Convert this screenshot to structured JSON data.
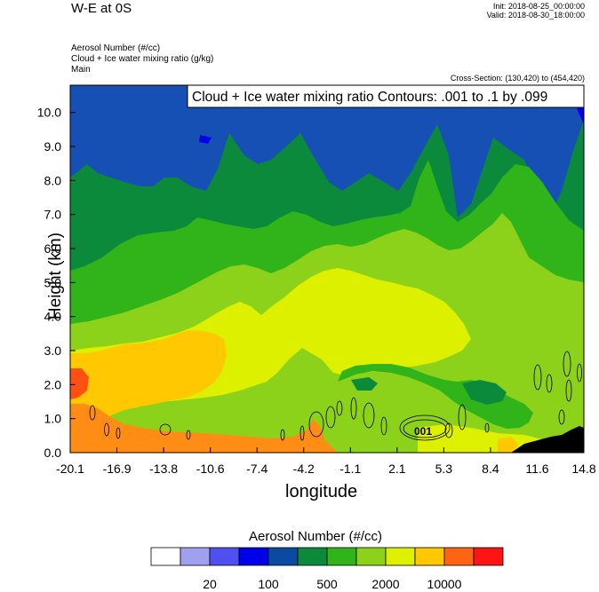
{
  "header": {
    "title": "W-E at 0S",
    "init": "Init: 2018-08-25_00:00:00",
    "valid": "Valid: 2018-08-30_18:00:00",
    "fields": [
      "Aerosol Number   (#/cc)",
      "Cloud + Ice water mixing ratio   (g/kg)",
      "Main"
    ],
    "cross_section": "Cross-Section: (130,420) to (454,420)"
  },
  "chart_data": {
    "type": "heatmap",
    "contour_label": "Cloud + Ice water mixing ratio Contours: .001 to .1 by .099",
    "contour_value_label": "001",
    "xlabel": "longitude",
    "ylabel": "Height (km)",
    "xlim": [
      -20.1,
      14.8
    ],
    "ylim": [
      0,
      10.8
    ],
    "x_ticks": [
      "-20.1",
      "-16.9",
      "-13.8",
      "-10.6",
      "-7.4",
      "-4.2",
      "-1.1",
      "2.1",
      "5.3",
      "8.4",
      "11.6",
      "14.8"
    ],
    "y_ticks": [
      "0.0",
      "1.0",
      "2.0",
      "3.0",
      "4.0",
      "5.0",
      "6.0",
      "7.0",
      "8.0",
      "9.0",
      "10.0"
    ],
    "y_tick_values": [
      0,
      1,
      2,
      3,
      4,
      5,
      6,
      7,
      8,
      9,
      10
    ],
    "colorbar": {
      "title": "Aerosol Number  (#/cc)",
      "labels": [
        "20",
        "100",
        "500",
        "2000",
        "10000"
      ],
      "colors": [
        "#ffffff",
        "#a0a0f0",
        "#5050f0",
        "#0000e8",
        "#0a4aa0",
        "#0a8a3a",
        "#30b41a",
        "#8cd21a",
        "#dcf000",
        "#ffc800",
        "#ff6414",
        "#ff1414"
      ]
    },
    "palette": {
      "blue": "#1650b4",
      "darkgreen": "#0a8a3a",
      "green": "#30b41a",
      "lightgreen": "#8cd21a",
      "yellowgreen": "#dcf000",
      "orange": "#ffc800",
      "darkorange": "#ff8c14",
      "red": "#ff5014",
      "terrain": "#000000"
    }
  }
}
